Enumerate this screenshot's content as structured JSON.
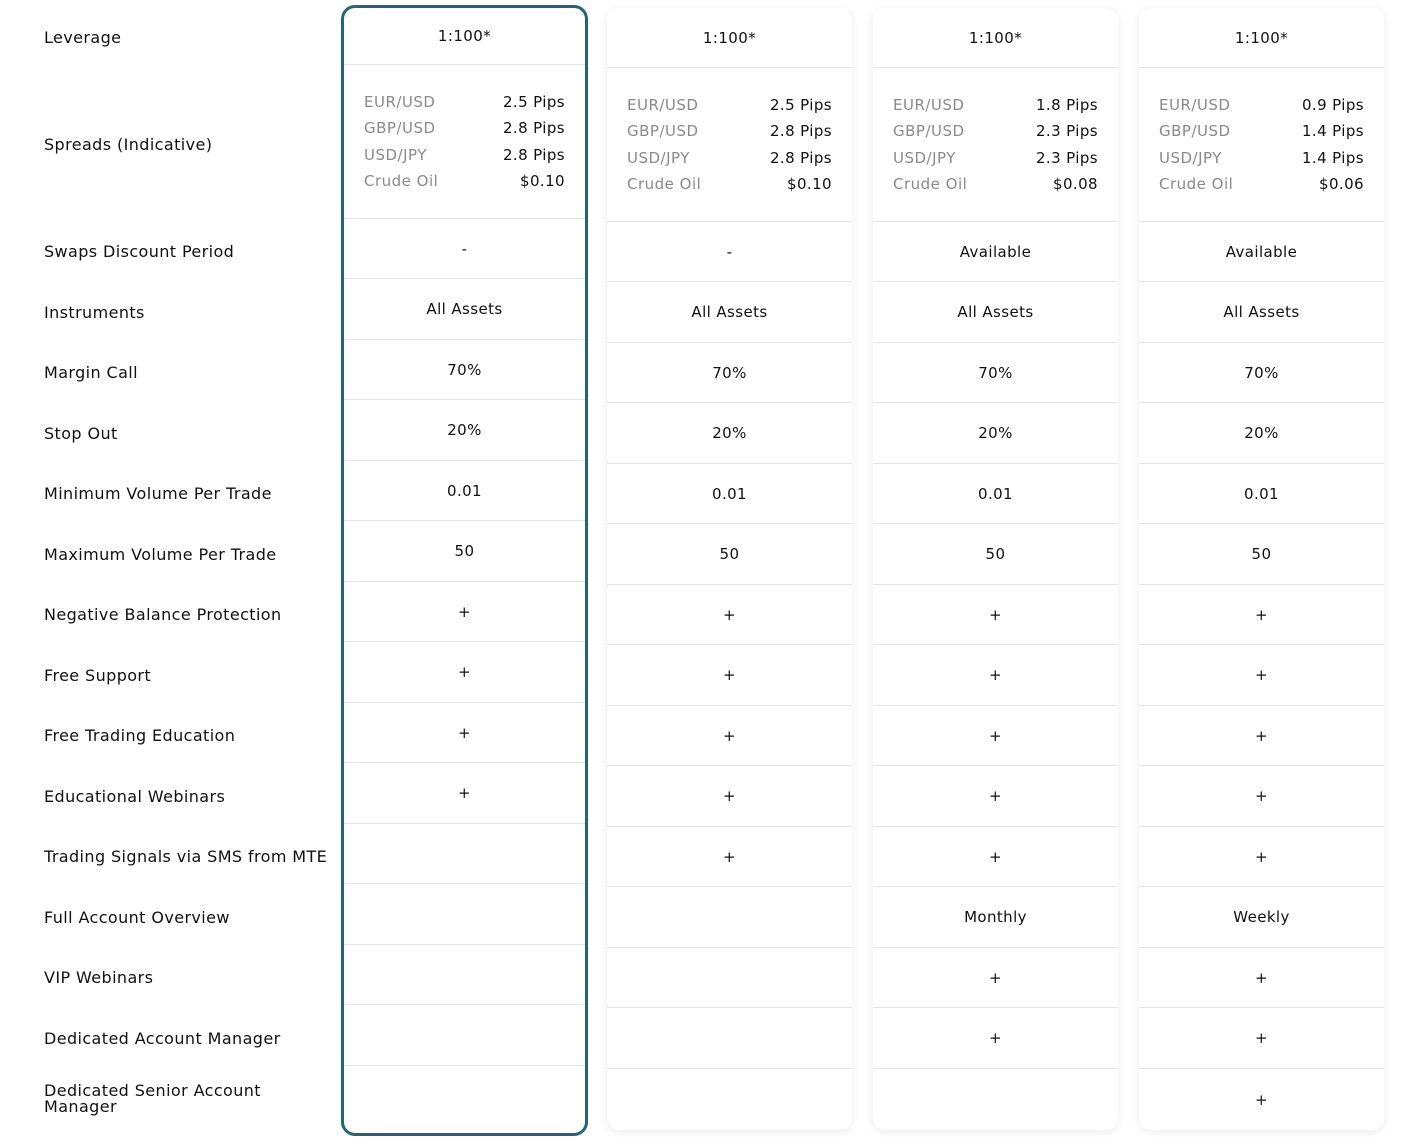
{
  "row_labels": [
    "Leverage",
    "Spreads (Indicative)",
    "Swaps Discount Period",
    "Instruments",
    "Margin Call",
    "Stop Out",
    "Minimum Volume Per Trade",
    "Maximum Volume Per Trade",
    "Negative Balance Protection",
    "Free Support",
    "Free Trading Education",
    "Educational Webinars",
    "Trading Signals via SMS from MTE",
    "Full Account Overview",
    "VIP Webinars",
    "Dedicated Account Manager",
    "Dedicated Senior Account Manager"
  ],
  "accent_color": "#236573",
  "columns": [
    {
      "leverage": "1:100*",
      "spreads": [
        {
          "pair": "EUR/USD",
          "value": "2.5 Pips"
        },
        {
          "pair": "GBP/USD",
          "value": "2.8 Pips"
        },
        {
          "pair": "USD/JPY",
          "value": "2.8 Pips"
        },
        {
          "pair": "Crude Oil",
          "value": "$0.10"
        }
      ],
      "swaps": "-",
      "instruments": "All Assets",
      "margin_call": "70%",
      "stop_out": "20%",
      "min_volume": "0.01",
      "max_volume": "50",
      "negative_balance": "+",
      "free_support": "+",
      "free_education": "+",
      "edu_webinars": "+",
      "sms_signals": "",
      "overview": "",
      "vip_webinars": "",
      "account_manager": "",
      "senior_manager": ""
    },
    {
      "leverage": "1:100*",
      "spreads": [
        {
          "pair": "EUR/USD",
          "value": "2.5 Pips"
        },
        {
          "pair": "GBP/USD",
          "value": "2.8 Pips"
        },
        {
          "pair": "USD/JPY",
          "value": "2.8 Pips"
        },
        {
          "pair": "Crude Oil",
          "value": "$0.10"
        }
      ],
      "swaps": "-",
      "instruments": "All Assets",
      "margin_call": "70%",
      "stop_out": "20%",
      "min_volume": "0.01",
      "max_volume": "50",
      "negative_balance": "+",
      "free_support": "+",
      "free_education": "+",
      "edu_webinars": "+",
      "sms_signals": "+",
      "overview": "",
      "vip_webinars": "",
      "account_manager": "",
      "senior_manager": ""
    },
    {
      "leverage": "1:100*",
      "spreads": [
        {
          "pair": "EUR/USD",
          "value": "1.8 Pips"
        },
        {
          "pair": "GBP/USD",
          "value": "2.3 Pips"
        },
        {
          "pair": "USD/JPY",
          "value": "2.3 Pips"
        },
        {
          "pair": "Crude Oil",
          "value": "$0.08"
        }
      ],
      "swaps": "Available",
      "instruments": "All Assets",
      "margin_call": "70%",
      "stop_out": "20%",
      "min_volume": "0.01",
      "max_volume": "50",
      "negative_balance": "+",
      "free_support": "+",
      "free_education": "+",
      "edu_webinars": "+",
      "sms_signals": "+",
      "overview": "Monthly",
      "vip_webinars": "+",
      "account_manager": "+",
      "senior_manager": ""
    },
    {
      "leverage": "1:100*",
      "spreads": [
        {
          "pair": "EUR/USD",
          "value": "0.9 Pips"
        },
        {
          "pair": "GBP/USD",
          "value": "1.4 Pips"
        },
        {
          "pair": "USD/JPY",
          "value": "1.4 Pips"
        },
        {
          "pair": "Crude Oil",
          "value": "$0.06"
        }
      ],
      "swaps": "Available",
      "instruments": "All Assets",
      "margin_call": "70%",
      "stop_out": "20%",
      "min_volume": "0.01",
      "max_volume": "50",
      "negative_balance": "+",
      "free_support": "+",
      "free_education": "+",
      "edu_webinars": "+",
      "sms_signals": "+",
      "overview": "Weekly",
      "vip_webinars": "+",
      "account_manager": "+",
      "senior_manager": "+"
    }
  ]
}
